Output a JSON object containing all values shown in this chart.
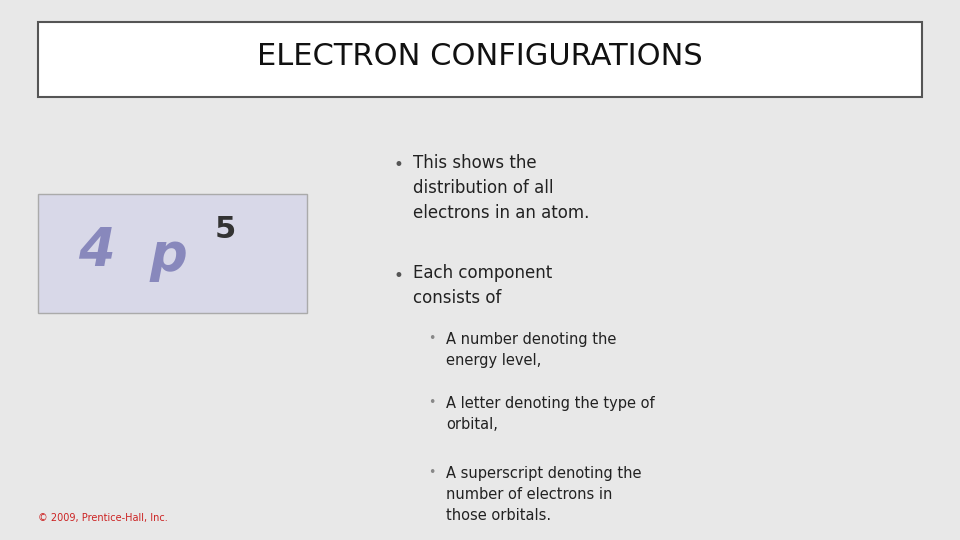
{
  "title": "ELECTRON CONFIGURATIONS",
  "background_color": "#e8e8e8",
  "title_box_color": "#ffffff",
  "title_box_border": "#555555",
  "title_fontsize": 22,
  "title_color": "#111111",
  "bullet1_large": "This shows the\ndistribution of all\nelectrons in an atom.",
  "bullet2_large": "Each component\nconsists of",
  "sub_bullets": [
    "A number denoting the\nenergy level,",
    "A letter denoting the type of\norbital,",
    "A superscript denoting the\nnumber of electrons in\nthose orbitals."
  ],
  "formula_4": "4",
  "formula_p": "p",
  "formula_5": "5",
  "formula_color_4p": "#6666aa",
  "formula_color_5": "#333333",
  "formula_box_color": "#d8d8e8",
  "bullet_color_large": "#555555",
  "bullet_color_sub": "#888888",
  "text_color_large": "#222222",
  "text_color_sub": "#222222",
  "copyright": "© 2009, Prentice-Hall, Inc.",
  "copyright_color": "#cc2222"
}
